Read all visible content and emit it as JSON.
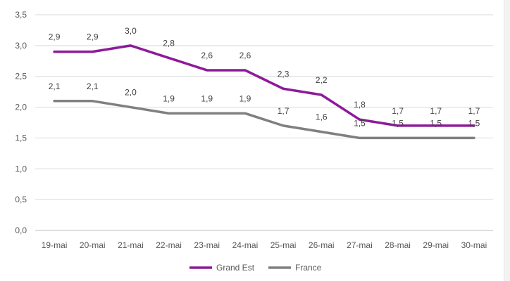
{
  "chart_data": {
    "type": "line",
    "title": "",
    "xlabel": "",
    "ylabel": "",
    "categories": [
      "19-mai",
      "20-mai",
      "21-mai",
      "22-mai",
      "23-mai",
      "24-mai",
      "25-mai",
      "26-mai",
      "27-mai",
      "28-mai",
      "29-mai",
      "30-mai"
    ],
    "ylim": [
      0,
      3.5
    ],
    "yticks": [
      0,
      0.5,
      1.0,
      1.5,
      2.0,
      2.5,
      3.0,
      3.5
    ],
    "ytick_labels": [
      "0,0",
      "0,5",
      "1,0",
      "1,5",
      "2,0",
      "2,5",
      "3,0",
      "3,5"
    ],
    "grid": true,
    "legend_position": "bottom",
    "series": [
      {
        "name": "Grand Est",
        "color": "#8e1a9a",
        "values": [
          2.9,
          2.9,
          3.0,
          2.8,
          2.6,
          2.6,
          2.3,
          2.2,
          1.8,
          1.7,
          1.7,
          1.7
        ],
        "labels": [
          "2,9",
          "2,9",
          "3,0",
          "2,8",
          "2,6",
          "2,6",
          "2,3",
          "2,2",
          "1,8",
          "1,7",
          "1,7",
          "1,7"
        ]
      },
      {
        "name": "France",
        "color": "#808080",
        "values": [
          2.1,
          2.1,
          2.0,
          1.9,
          1.9,
          1.9,
          1.7,
          1.6,
          1.5,
          1.5,
          1.5,
          1.5
        ],
        "labels": [
          "2,1",
          "2,1",
          "2,0",
          "1,9",
          "1,9",
          "1,9",
          "1,7",
          "1,6",
          "1,5",
          "1,5",
          "1,5",
          "1,5"
        ]
      }
    ]
  }
}
